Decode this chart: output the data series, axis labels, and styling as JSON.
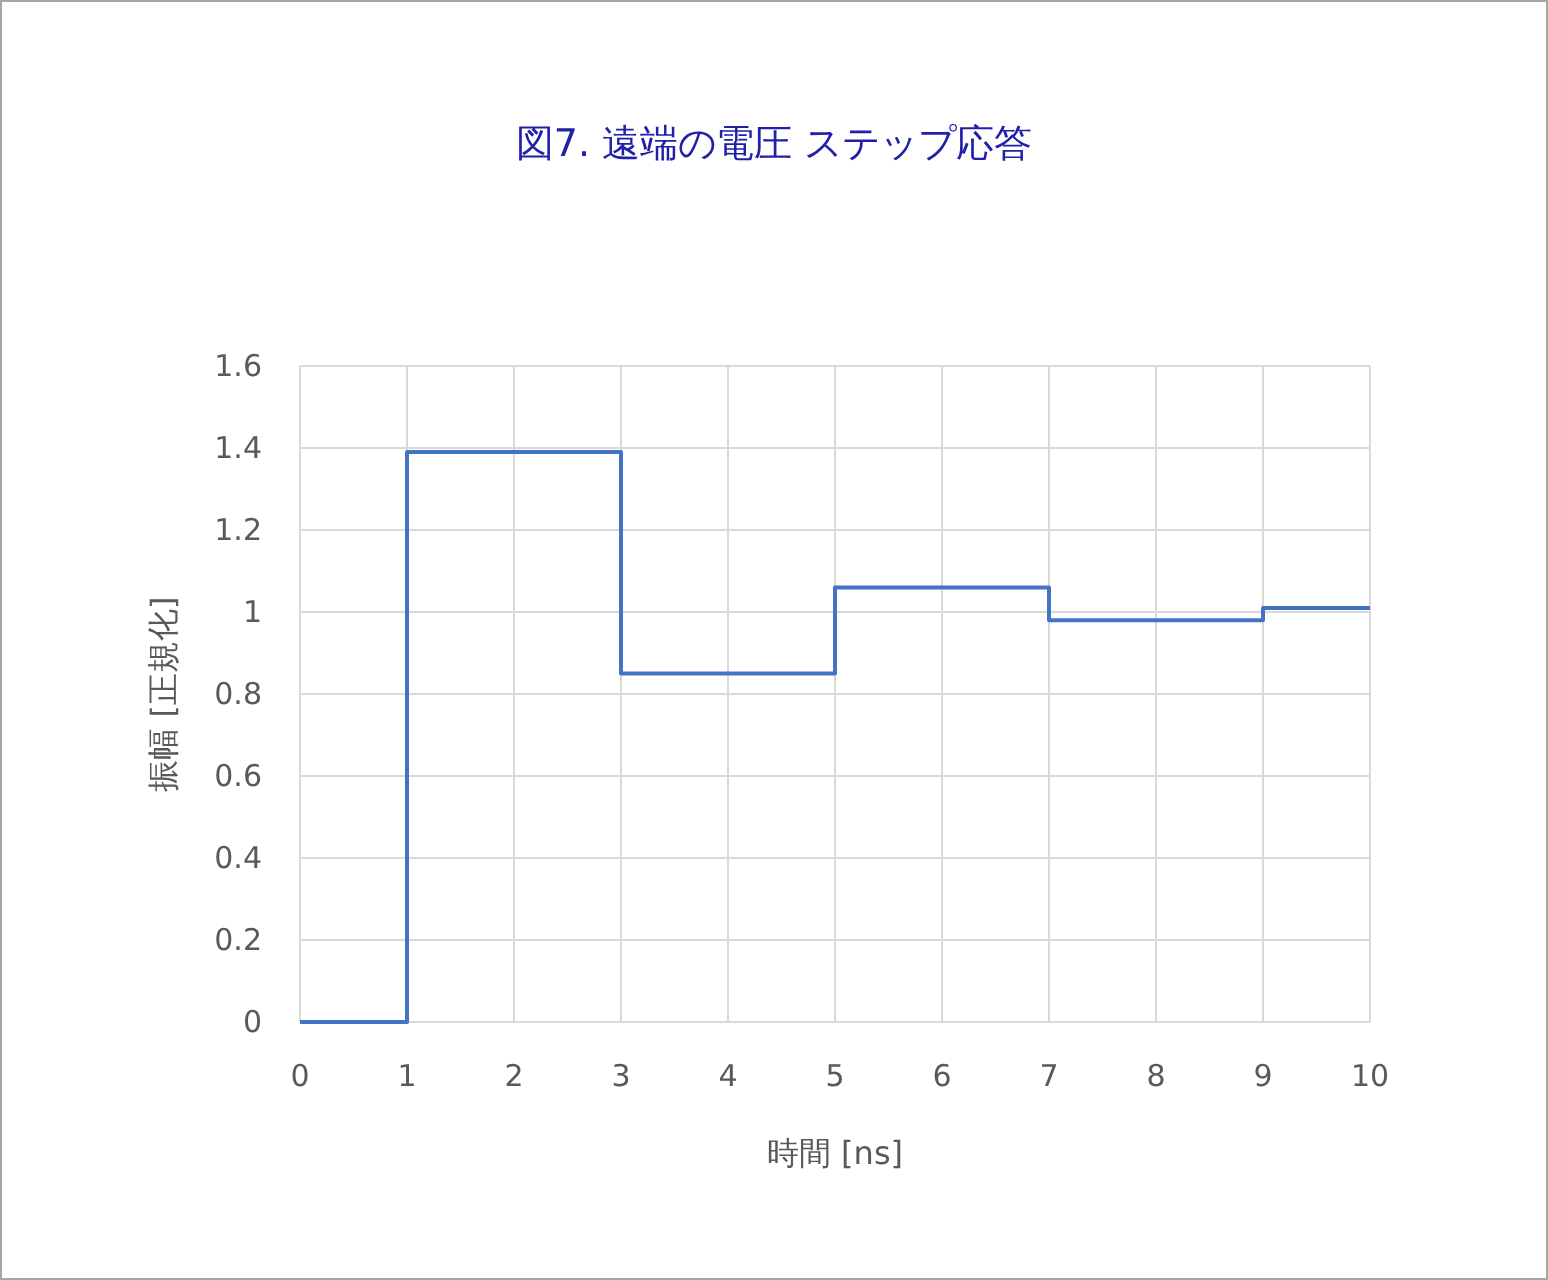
{
  "chart_data": {
    "type": "step",
    "title": "図7. 遠端の電圧 ステップ応答",
    "xlabel": "時間 [ns]",
    "ylabel": "振幅 [正規化]",
    "x": [
      0,
      1,
      3,
      5,
      7,
      9,
      10
    ],
    "series": [
      {
        "color": "#4472c4",
        "values": [
          0,
          1.39,
          0.85,
          1.06,
          0.98,
          1.01,
          1.01
        ]
      }
    ],
    "xlim": [
      0,
      10
    ],
    "xticks": [
      0,
      1,
      2,
      3,
      4,
      5,
      6,
      7,
      8,
      9,
      10
    ],
    "ylim": [
      0,
      1.6
    ],
    "yticks": [
      {
        "value": 0,
        "label": "0"
      },
      {
        "value": 0.2,
        "label": "0.2"
      },
      {
        "value": 0.4,
        "label": "0.4"
      },
      {
        "value": 0.6,
        "label": "0.6"
      },
      {
        "value": 0.8,
        "label": "0.8"
      },
      {
        "value": 1,
        "label": "1"
      },
      {
        "value": 1.2,
        "label": "1.2"
      },
      {
        "value": 1.4,
        "label": "1.4"
      },
      {
        "value": 1.6,
        "label": "1.6"
      }
    ],
    "grid": true,
    "marker": "none",
    "line_style": "solid"
  }
}
